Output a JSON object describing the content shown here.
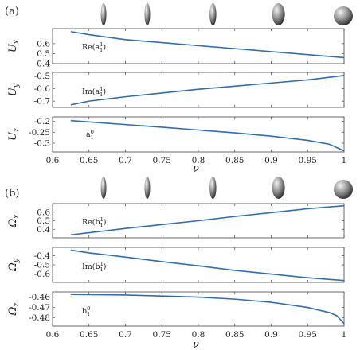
{
  "figure": {
    "blocks": [
      {
        "tag": "(a)",
        "xlabel": "ν",
        "panels": [
          {
            "ylabel": "U_x",
            "annotation": "Re(a_1^1)"
          },
          {
            "ylabel": "U_y",
            "annotation": "Im(a_1^1)"
          },
          {
            "ylabel": "U_z",
            "annotation": "a_1^0"
          }
        ]
      },
      {
        "tag": "(b)",
        "xlabel": "ν",
        "panels": [
          {
            "ylabel": "Ω_x",
            "annotation": "Re(b_1^1)"
          },
          {
            "ylabel": "Ω_y",
            "annotation": "Im(b_1^1)"
          },
          {
            "ylabel": "Ω_z",
            "annotation": "b_1^0"
          }
        ]
      }
    ],
    "shape_icons_nu": [
      0.67,
      0.73,
      0.82,
      0.91,
      1.0
    ],
    "line_color": "#2f6db5"
  },
  "chart_data": [
    {
      "type": "line",
      "xlabel": "",
      "ylabel": "U_x",
      "xlim": [
        0.6,
        1
      ],
      "ylim": [
        0.4,
        0.75
      ],
      "xticks": [],
      "yticks": [
        "0.4",
        "0.5",
        "0.6"
      ],
      "annotation": "Re(a_1^1)",
      "x": [
        0.625,
        0.65,
        0.7,
        0.75,
        0.8,
        0.85,
        0.9,
        0.95,
        1.0
      ],
      "series": [
        {
          "values": [
            0.72,
            0.69,
            0.64,
            0.61,
            0.58,
            0.55,
            0.52,
            0.49,
            0.46
          ]
        }
      ]
    },
    {
      "type": "line",
      "xlabel": "",
      "ylabel": "U_y",
      "xlim": [
        0.6,
        1
      ],
      "ylim": [
        -0.75,
        -0.47
      ],
      "xticks": [],
      "yticks": [
        "-0.5",
        "-0.6",
        "-0.7"
      ],
      "annotation": "Im(a_1^1)",
      "x": [
        0.625,
        0.65,
        0.7,
        0.75,
        0.8,
        0.85,
        0.9,
        0.95,
        1.0
      ],
      "series": [
        {
          "values": [
            -0.73,
            -0.7,
            -0.665,
            -0.635,
            -0.605,
            -0.58,
            -0.555,
            -0.53,
            -0.495
          ]
        }
      ]
    },
    {
      "type": "line",
      "xlabel": "ν",
      "ylabel": "U_z",
      "xlim": [
        0.6,
        1
      ],
      "ylim": [
        -0.34,
        -0.18
      ],
      "xticks": [
        "0.6",
        "0.65",
        "0.7",
        "0.75",
        "0.8",
        "0.85",
        "0.9",
        "0.95",
        "1"
      ],
      "yticks": [
        "-0.2",
        "-0.25",
        "-0.3"
      ],
      "annotation": "a_1^0",
      "x": [
        0.625,
        0.65,
        0.7,
        0.75,
        0.8,
        0.85,
        0.9,
        0.95,
        0.98,
        1.0
      ],
      "series": [
        {
          "values": [
            -0.197,
            -0.203,
            -0.215,
            -0.227,
            -0.24,
            -0.253,
            -0.268,
            -0.287,
            -0.305,
            -0.335
          ]
        }
      ]
    },
    {
      "type": "line",
      "xlabel": "",
      "ylabel": "Ω_x",
      "xlim": [
        0.6,
        1
      ],
      "ylim": [
        0.3,
        0.7
      ],
      "xticks": [],
      "yticks": [
        "0.6",
        "0.5",
        "0.4"
      ],
      "annotation": "Re(b_1^1)",
      "x": [
        0.625,
        0.65,
        0.7,
        0.75,
        0.8,
        0.85,
        0.9,
        0.95,
        1.0
      ],
      "series": [
        {
          "values": [
            0.335,
            0.36,
            0.41,
            0.455,
            0.5,
            0.55,
            0.595,
            0.64,
            0.675
          ]
        }
      ]
    },
    {
      "type": "line",
      "xlabel": "",
      "ylabel": "Ω_y",
      "xlim": [
        0.6,
        1
      ],
      "ylim": [
        -0.69,
        -0.31
      ],
      "xticks": [],
      "yticks": [
        "-0.4",
        "-0.5",
        "-0.6"
      ],
      "annotation": "Im(b_1^1)",
      "x": [
        0.625,
        0.65,
        0.7,
        0.75,
        0.8,
        0.85,
        0.9,
        0.95,
        1.0
      ],
      "series": [
        {
          "values": [
            -0.34,
            -0.37,
            -0.415,
            -0.465,
            -0.51,
            -0.56,
            -0.6,
            -0.64,
            -0.67
          ]
        }
      ]
    },
    {
      "type": "line",
      "xlabel": "ν",
      "ylabel": "Ω_z",
      "xlim": [
        0.6,
        1
      ],
      "ylim": [
        -0.488,
        -0.455
      ],
      "xticks": [
        "0.6",
        "0.65",
        "0.7",
        "0.75",
        "0.8",
        "0.85",
        "0.9",
        "0.95",
        "1"
      ],
      "yticks": [
        "-0.46",
        "-0.47",
        "-0.48"
      ],
      "annotation": "b_1^0",
      "x": [
        0.625,
        0.7,
        0.75,
        0.8,
        0.85,
        0.9,
        0.95,
        0.98,
        0.99,
        1.0
      ],
      "series": [
        {
          "values": [
            -0.4575,
            -0.458,
            -0.459,
            -0.46,
            -0.462,
            -0.465,
            -0.47,
            -0.475,
            -0.478,
            -0.4855
          ]
        }
      ]
    }
  ]
}
